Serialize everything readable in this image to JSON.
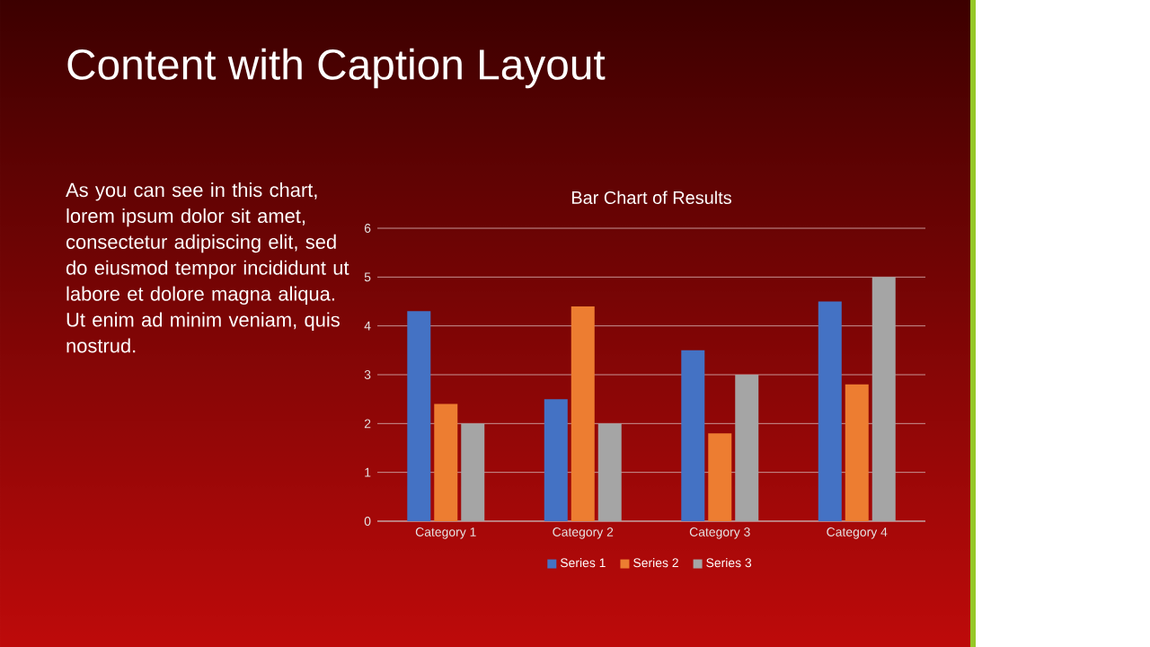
{
  "chart_data": {
    "type": "bar",
    "title": "Bar Chart of Results",
    "categories": [
      "Category 1",
      "Category 2",
      "Category 3",
      "Category 4"
    ],
    "series": [
      {
        "name": "Series 1",
        "color": "#4472c4",
        "values": [
          4.3,
          2.5,
          3.5,
          4.5
        ]
      },
      {
        "name": "Series 2",
        "color": "#ed7d31",
        "values": [
          2.4,
          4.4,
          1.8,
          2.8
        ]
      },
      {
        "name": "Series 3",
        "color": "#a5a5a5",
        "values": [
          2,
          2,
          3,
          5
        ]
      }
    ],
    "ylim": [
      0,
      6
    ],
    "yticks": [
      0,
      1,
      2,
      3,
      4,
      5,
      6
    ],
    "grid": "y",
    "legend": "bottom",
    "annotations": [
      "Content with Caption Layout",
      "As you can see in this chart, lorem ipsum dolor sit amet, consectetur adipiscing elit, sed do eiusmod tempor incididunt ut labore et dolore magna aliqua. Ut enim ad minim veniam, quis nostrud."
    ]
  }
}
